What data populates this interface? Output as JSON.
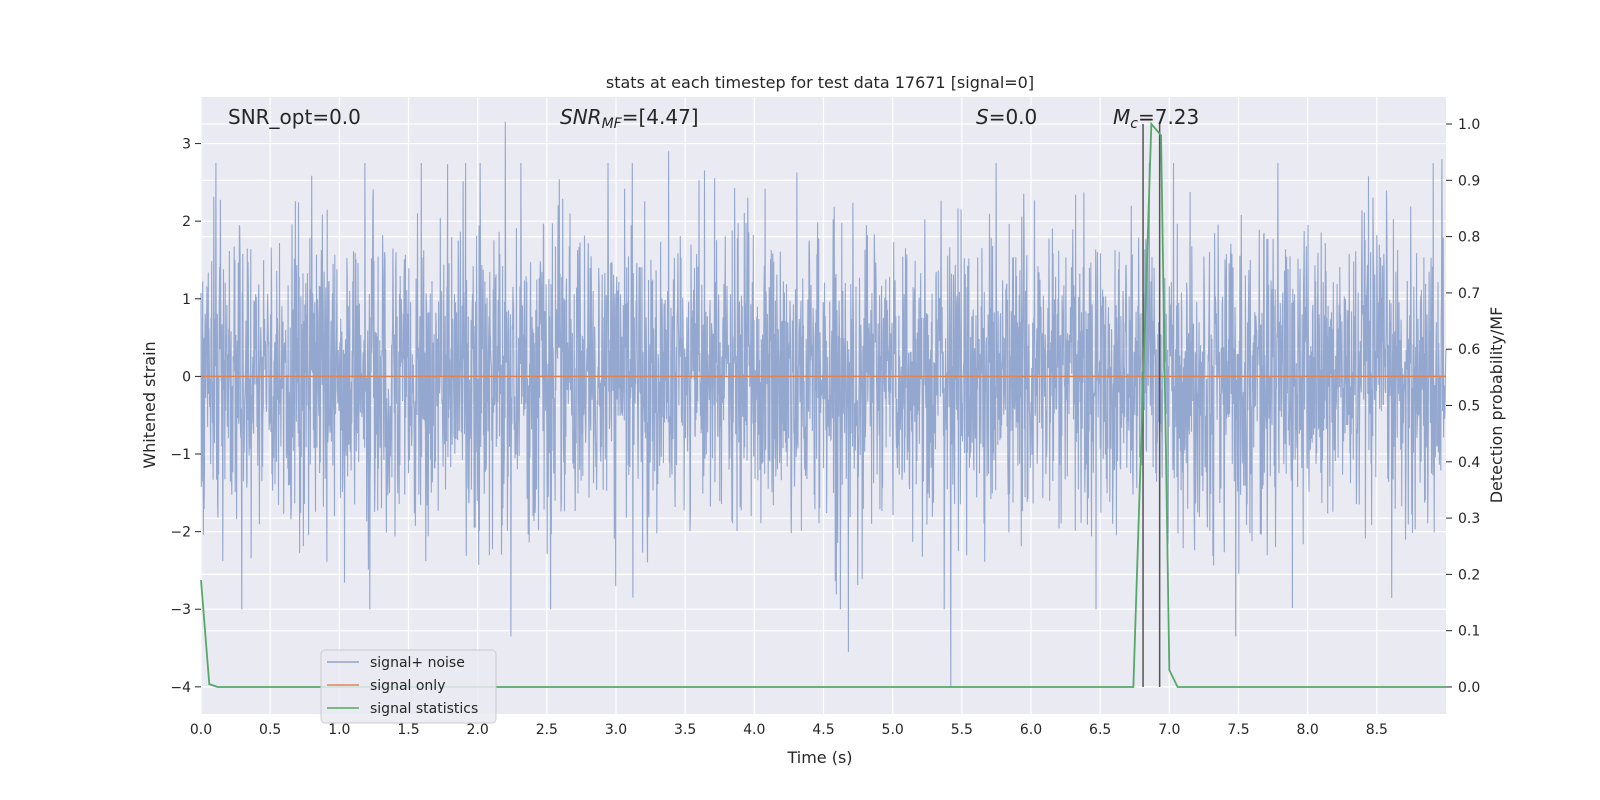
{
  "chart_data": {
    "type": "line",
    "title": "stats at each timestep for test data 17671 [signal=0]",
    "xlabel": "Time (s)",
    "ylabel": "Whitened strain",
    "y2label": "Detection probability/MF",
    "xlim": [
      0.0,
      9.0
    ],
    "ylim": [
      -4.35,
      3.6
    ],
    "y2lim": [
      -0.048,
      1.048
    ],
    "xticks": [
      "0.0",
      "0.5",
      "1.0",
      "1.5",
      "2.0",
      "2.5",
      "3.0",
      "3.5",
      "4.0",
      "4.5",
      "5.0",
      "5.5",
      "6.0",
      "6.5",
      "7.0",
      "7.5",
      "8.0",
      "8.5"
    ],
    "yticks": [
      "3",
      "2",
      "1",
      "0",
      "−1",
      "−2",
      "−3",
      "−4"
    ],
    "y2ticks": [
      "1.0",
      "0.9",
      "0.8",
      "0.7",
      "0.6",
      "0.5",
      "0.4",
      "0.3",
      "0.2",
      "0.1",
      "0.0"
    ],
    "grid": true,
    "legend_position": "lower-left",
    "annotations": {
      "snr_opt": "SNR_opt=0.0",
      "snr_mf_main": "SNR",
      "snr_mf_sub": "MF",
      "snr_mf_val": "=[4.47]",
      "s_main": "S",
      "s_val": "=0.0",
      "mc_main": "M",
      "mc_sub": "c",
      "mc_val": "=7.23"
    },
    "series": [
      {
        "name": "signal+ noise",
        "color": "#8fa3cc",
        "description_range": [
          -4.0,
          3.28
        ],
        "peaks": [
          {
            "x": 2.2,
            "y": 3.28
          },
          {
            "x": 3.38,
            "y": 2.9
          },
          {
            "x": 5.42,
            "y": -4.0
          },
          {
            "x": 4.68,
            "y": -3.55
          },
          {
            "x": 2.24,
            "y": -3.35
          },
          {
            "x": 7.48,
            "y": -3.35
          },
          {
            "x": 8.97,
            "y": 2.8
          }
        ]
      },
      {
        "name": "signal only",
        "color": "#dd8452",
        "x": [
          0.0,
          9.0
        ],
        "y": [
          0.0,
          0.0
        ]
      },
      {
        "name": "signal statistics",
        "color": "#55a868",
        "axis": "right",
        "x": [
          0.0,
          0.06,
          0.12,
          6.74,
          6.87,
          6.94,
          7.0,
          7.06,
          9.0
        ],
        "y": [
          0.19,
          0.005,
          0.0,
          0.0,
          1.0,
          0.98,
          0.03,
          0.0,
          0.0
        ]
      }
    ],
    "vlines": [
      6.81,
      6.93
    ]
  }
}
